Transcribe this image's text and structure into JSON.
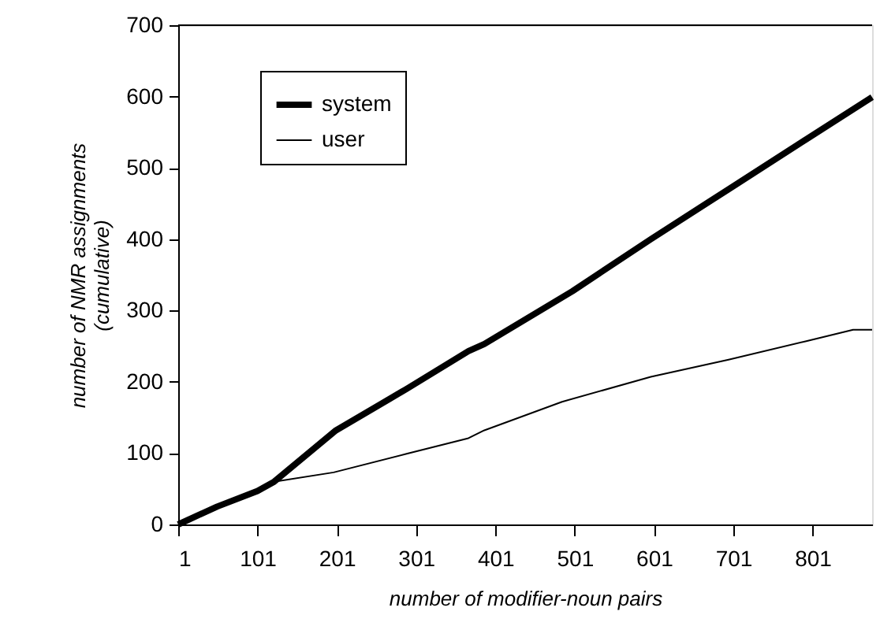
{
  "chart_data": {
    "type": "line",
    "xlabel": "number of modifier-noun pairs",
    "ylabel": "number of NMR assignments\n(cumulative)",
    "xlim": [
      1,
      876
    ],
    "xticks": [
      1,
      101,
      201,
      301,
      401,
      501,
      601,
      701,
      801
    ],
    "ylim": [
      0,
      700
    ],
    "yticks": [
      0,
      100,
      200,
      300,
      400,
      500,
      600,
      700
    ],
    "grid": false,
    "legend": "top left",
    "line_style": "solid",
    "marker": "none",
    "series": [
      {
        "name": "system",
        "color": "#000000",
        "x": [
          1,
          50,
          101,
          122,
          200,
          289,
          367,
          387,
          498,
          597,
          695,
          793,
          876
        ],
        "values": [
          0,
          25,
          47,
          60,
          132,
          190,
          243,
          253,
          327,
          400,
          470,
          540,
          599
        ]
      },
      {
        "name": "user",
        "color": "#000000",
        "x": [
          1,
          50,
          101,
          122,
          197,
          289,
          367,
          387,
          485,
          597,
          695,
          793,
          852,
          876
        ],
        "values": [
          0,
          25,
          47,
          60,
          73,
          99,
          121,
          132,
          172,
          207,
          231,
          257,
          273,
          273
        ]
      }
    ]
  }
}
